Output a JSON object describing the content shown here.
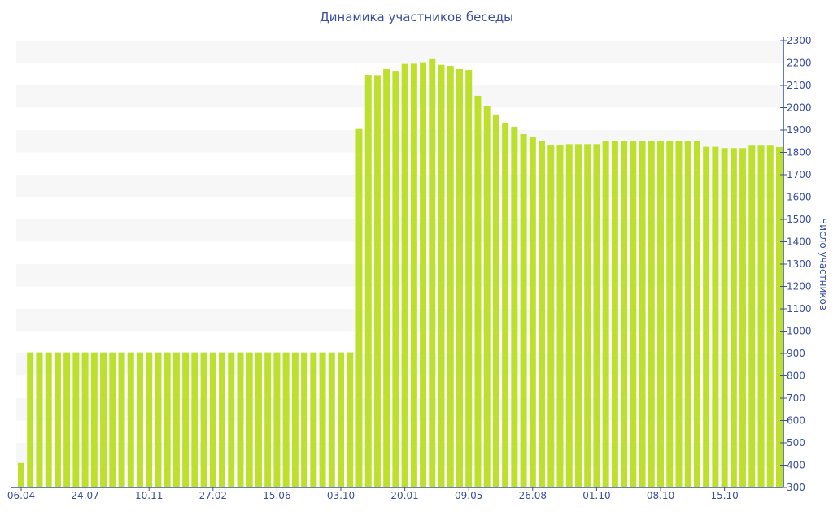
{
  "chart_data": {
    "type": "bar",
    "title": "Динамика участников беседы",
    "xlabel": "",
    "ylabel": "Число участников",
    "ylim": [
      300,
      2300
    ],
    "y_ticks": [
      300,
      400,
      500,
      600,
      700,
      800,
      900,
      1000,
      1100,
      1200,
      1300,
      1400,
      1500,
      1600,
      1700,
      1800,
      1900,
      2000,
      2100,
      2200,
      2300
    ],
    "x_tick_every": 7,
    "x_tick_labels": [
      "06.04",
      "24.07",
      "10.11",
      "27.02",
      "15.06",
      "03.10",
      "20.01",
      "09.05",
      "26.08",
      "01.10",
      "08.10",
      "15.10"
    ],
    "values": [
      410,
      905,
      905,
      905,
      905,
      905,
      905,
      905,
      905,
      905,
      905,
      905,
      905,
      905,
      905,
      905,
      905,
      905,
      905,
      905,
      905,
      905,
      905,
      905,
      905,
      905,
      905,
      905,
      905,
      905,
      905,
      905,
      905,
      905,
      905,
      905,
      905,
      1905,
      2147,
      2146,
      2173,
      2165,
      2196,
      2197,
      2203,
      2217,
      2192,
      2187,
      2173,
      2169,
      2053,
      2008,
      1970,
      1933,
      1915,
      1882,
      1871,
      1849,
      1833,
      1833,
      1837,
      1837,
      1837,
      1837,
      1852,
      1852,
      1852,
      1852,
      1852,
      1852,
      1852,
      1852,
      1852,
      1852,
      1852,
      1825,
      1825,
      1819,
      1819,
      1819,
      1830,
      1830,
      1830,
      1824
    ],
    "bar_color": "#bde02e",
    "band_color": "#f7f7f7",
    "axis_color": "#3b4fa0",
    "grid": "alternating-bands"
  }
}
